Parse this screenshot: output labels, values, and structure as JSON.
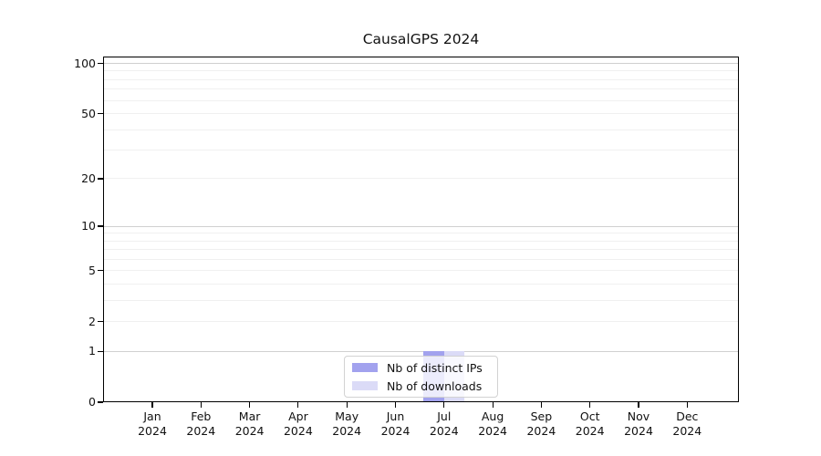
{
  "chart_data": {
    "type": "bar",
    "title": "CausalGPS 2024",
    "categories": [
      "Jan",
      "Feb",
      "Mar",
      "Apr",
      "May",
      "Jun",
      "Jul",
      "Aug",
      "Sep",
      "Oct",
      "Nov",
      "Dec"
    ],
    "category_sublabel": "2024",
    "series": [
      {
        "name": "Nb of distinct IPs",
        "color": "#a2a2ee",
        "values": [
          0,
          0,
          0,
          0,
          0,
          0,
          1,
          0,
          0,
          0,
          0,
          0
        ]
      },
      {
        "name": "Nb of downloads",
        "color": "#dbdbf7",
        "values": [
          0,
          0,
          0,
          0,
          0,
          0,
          1,
          0,
          0,
          0,
          0,
          0
        ]
      }
    ],
    "yscale": "log1p",
    "ylim": [
      0,
      110
    ],
    "ytick_labels": [
      0,
      1,
      2,
      5,
      10,
      20,
      50,
      100
    ],
    "grid_major": [
      1,
      10,
      100
    ],
    "grid_minor": [
      2,
      3,
      4,
      5,
      6,
      7,
      8,
      9,
      20,
      30,
      40,
      50,
      60,
      70,
      80,
      90
    ],
    "grid": true,
    "legend_position": "lower center",
    "colors": {
      "grid_major": "#d0d0d0",
      "grid_minor": "#f0f0f0",
      "spine": "#000000",
      "background": "#ffffff"
    }
  }
}
